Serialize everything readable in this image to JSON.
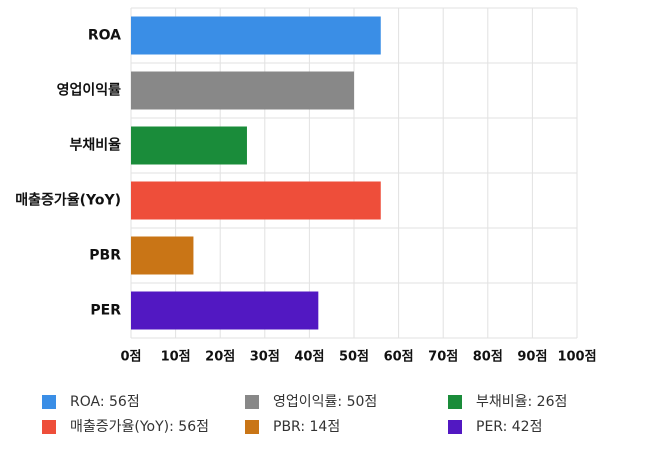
{
  "chart_data": {
    "type": "bar",
    "orientation": "horizontal",
    "categories": [
      "ROA",
      "영업이익률",
      "부채비율",
      "매출증가율(YoY)",
      "PBR",
      "PER"
    ],
    "values": [
      56,
      50,
      26,
      56,
      14,
      42
    ],
    "colors": [
      "#3a8ee6",
      "#888888",
      "#1a8c3a",
      "#ee4e3a",
      "#c97516",
      "#5218c2"
    ],
    "value_labels": [
      "ROA: 56점",
      "영업이익률: 50점",
      "부채비율: 26점",
      "매출증가율(YoY): 56점",
      "PBR: 14점",
      "PER: 42점"
    ],
    "xlim": [
      0,
      100
    ],
    "xticks": [
      {
        "value": 0,
        "label": "0점"
      },
      {
        "value": 10,
        "label": "10점"
      },
      {
        "value": 20,
        "label": "20점"
      },
      {
        "value": 30,
        "label": "30점"
      },
      {
        "value": 40,
        "label": "40점"
      },
      {
        "value": 50,
        "label": "50점"
      },
      {
        "value": 60,
        "label": "60점"
      },
      {
        "value": 70,
        "label": "70점"
      },
      {
        "value": 80,
        "label": "80점"
      },
      {
        "value": 90,
        "label": "90점"
      },
      {
        "value": 100,
        "label": "100점"
      }
    ],
    "grid": true
  }
}
